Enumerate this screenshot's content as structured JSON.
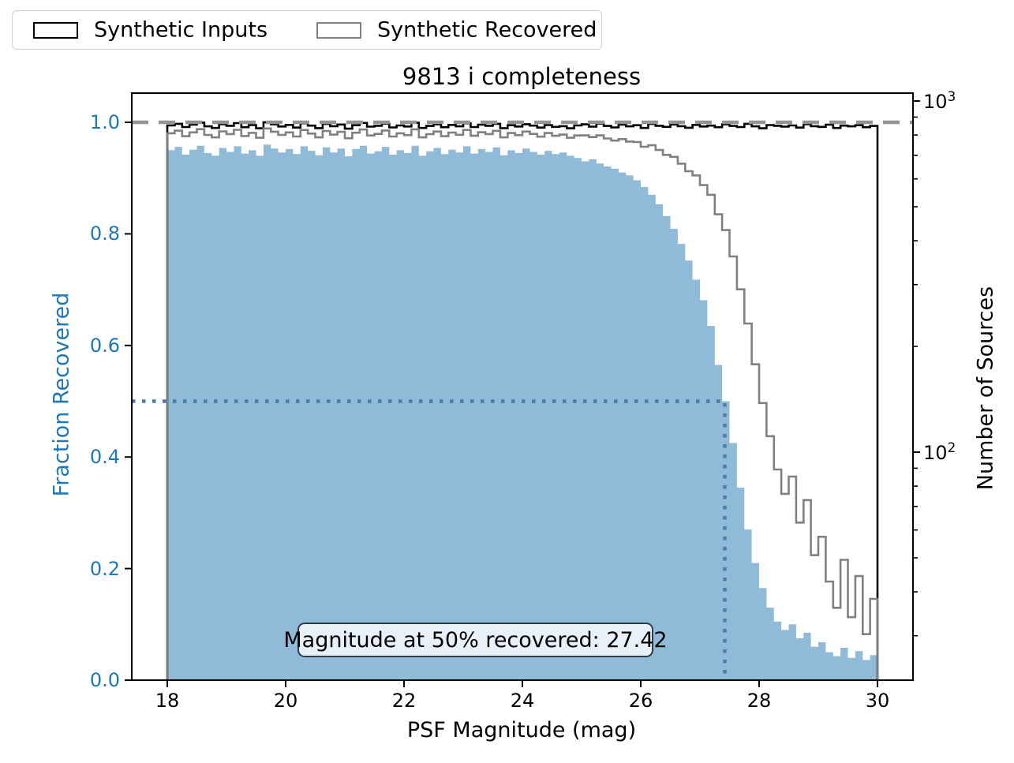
{
  "title": "9813 i completeness",
  "legend": {
    "items": [
      {
        "label": "Synthetic Inputs",
        "color": "#000000"
      },
      {
        "label": "Synthetic Recovered",
        "color": "#808080"
      }
    ]
  },
  "annotation": {
    "text": "Magnitude at 50% recovered: 27.42"
  },
  "axes": {
    "x": {
      "label": "PSF Magnitude (mag)",
      "ticks": [
        {
          "value": 18,
          "label": "18"
        },
        {
          "value": 20,
          "label": "20"
        },
        {
          "value": 22,
          "label": "22"
        },
        {
          "value": 24,
          "label": "24"
        },
        {
          "value": 26,
          "label": "26"
        },
        {
          "value": 28,
          "label": "28"
        },
        {
          "value": 30,
          "label": "30"
        }
      ],
      "range": [
        17.4,
        30.6
      ]
    },
    "y_left": {
      "label": "Fraction Recovered",
      "color": "#1f77b4",
      "ticks": [
        {
          "value": 0.0,
          "label": "0.0"
        },
        {
          "value": 0.2,
          "label": "0.2"
        },
        {
          "value": 0.4,
          "label": "0.4"
        },
        {
          "value": 0.6,
          "label": "0.6"
        },
        {
          "value": 0.8,
          "label": "0.8"
        },
        {
          "value": 1.0,
          "label": "1.0"
        }
      ],
      "range": [
        0.0,
        1.052
      ]
    },
    "y_right": {
      "label": "Number of Sources",
      "scale": "log",
      "major_ticks": [
        {
          "value": 1000,
          "base": "10",
          "exp": "3"
        },
        {
          "value": 100,
          "base": "10",
          "exp": "2"
        }
      ],
      "minor_tick_values": [
        900,
        800,
        700,
        600,
        500,
        400,
        300,
        200,
        90,
        80,
        70,
        60,
        50,
        40,
        30
      ]
    }
  },
  "colors": {
    "fraction_fill": "#8fbbd9",
    "inputs_line": "#000000",
    "recovered_line": "#808080",
    "reference_dash": "#949494",
    "marker_dotted": "#4e7ca4",
    "tick_text_left": "#1f77b4",
    "annotation_bg": "#e8f0f9",
    "annotation_border": "#333b44"
  },
  "chart_data": {
    "type": "bar",
    "description": "Completeness histogram: blue filled bars = fraction recovered (left linear axis); black step = synthetic input counts, gray step = synthetic recovered counts (right log axis). recovered_counts = inputs * fraction.",
    "bin_start": 18.0,
    "bin_width": 0.125,
    "n_bins": 96,
    "fraction_recovered": [
      0.95,
      0.956,
      0.942,
      0.951,
      0.958,
      0.945,
      0.94,
      0.954,
      0.947,
      0.957,
      0.944,
      0.95,
      0.94,
      0.96,
      0.953,
      0.946,
      0.952,
      0.943,
      0.957,
      0.949,
      0.941,
      0.955,
      0.946,
      0.953,
      0.939,
      0.952,
      0.958,
      0.944,
      0.948,
      0.956,
      0.942,
      0.95,
      0.945,
      0.958,
      0.94,
      0.948,
      0.954,
      0.943,
      0.951,
      0.946,
      0.957,
      0.944,
      0.952,
      0.947,
      0.955,
      0.941,
      0.95,
      0.945,
      0.953,
      0.947,
      0.942,
      0.949,
      0.943,
      0.946,
      0.94,
      0.936,
      0.93,
      0.934,
      0.926,
      0.921,
      0.917,
      0.91,
      0.905,
      0.896,
      0.884,
      0.87,
      0.853,
      0.832,
      0.809,
      0.782,
      0.752,
      0.718,
      0.681,
      0.635,
      0.565,
      0.5,
      0.425,
      0.345,
      0.27,
      0.21,
      0.165,
      0.13,
      0.105,
      0.09,
      0.1,
      0.075,
      0.085,
      0.06,
      0.068,
      0.05,
      0.043,
      0.058,
      0.04,
      0.052,
      0.036,
      0.045
    ],
    "input_counts": [
      852,
      861,
      843,
      856,
      868,
      847,
      838,
      859,
      850,
      865,
      842,
      854,
      836,
      870,
      858,
      846,
      855,
      840,
      864,
      851,
      837,
      860,
      848,
      857,
      834,
      853,
      866,
      845,
      850,
      862,
      841,
      852,
      846,
      867,
      838,
      849,
      858,
      842,
      855,
      847,
      864,
      843,
      856,
      850,
      861,
      837,
      853,
      846,
      859,
      851,
      840,
      854,
      844,
      848,
      836,
      852,
      858,
      845,
      862,
      849,
      841,
      856,
      847,
      853,
      838,
      860,
      850,
      844,
      857,
      848,
      839,
      855,
      846,
      851,
      842,
      858,
      849,
      843,
      861,
      847,
      836,
      854,
      850,
      845,
      852,
      840,
      859,
      848,
      844,
      856,
      838,
      851,
      847,
      853,
      842,
      849
    ],
    "markers": {
      "reference_fraction": 1.0,
      "half_fraction": 0.5,
      "half_magnitude": 27.42
    },
    "title": "9813 i completeness",
    "xlabel": "PSF Magnitude (mag)",
    "ylabel_left": "Fraction Recovered",
    "ylabel_right": "Number of Sources",
    "xlim": [
      17.4,
      30.6
    ],
    "ylim_left": [
      0.0,
      1.052
    ],
    "ylim_right_log10": [
      1.35,
      3.02
    ],
    "legend_position": "upper left (outside axes)",
    "grid": false
  }
}
